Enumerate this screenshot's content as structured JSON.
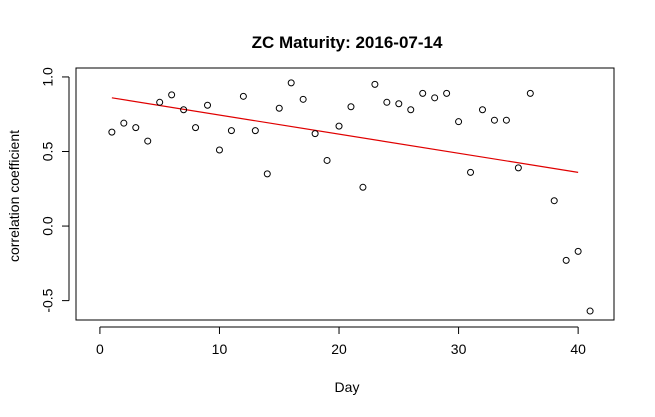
{
  "chart_data": {
    "type": "scatter",
    "title": "ZC Maturity: 2016-07-14",
    "xlabel": "Day",
    "ylabel": "correlation coefficient",
    "xlim": [
      -2,
      43
    ],
    "ylim": [
      -0.63,
      1.06
    ],
    "xticks": [
      0,
      10,
      20,
      30,
      40
    ],
    "yticks": [
      -0.5,
      0.0,
      0.5,
      1.0
    ],
    "xtick_labels": [
      "0",
      "10",
      "20",
      "30",
      "40"
    ],
    "ytick_labels": [
      "-0.5",
      "0.0",
      "0.5",
      "1.0"
    ],
    "grid": false,
    "series": [
      {
        "type": "scatter",
        "color": "#000000",
        "marker": "open-circle",
        "x": [
          1,
          2,
          3,
          4,
          5,
          6,
          7,
          8,
          9,
          10,
          11,
          12,
          13,
          14,
          15,
          16,
          17,
          18,
          19,
          20,
          21,
          22,
          23,
          24,
          25,
          26,
          27,
          28,
          29,
          30,
          31,
          32,
          33,
          34,
          35,
          36,
          38,
          39,
          40,
          41
        ],
        "y": [
          0.63,
          0.69,
          0.66,
          0.57,
          0.83,
          0.88,
          0.78,
          0.66,
          0.81,
          0.51,
          0.64,
          0.87,
          0.64,
          0.35,
          0.79,
          0.96,
          0.85,
          0.62,
          0.44,
          0.67,
          0.8,
          0.26,
          0.95,
          0.83,
          0.82,
          0.78,
          0.89,
          0.86,
          0.89,
          0.7,
          0.36,
          0.78,
          0.71,
          0.71,
          0.39,
          0.89,
          0.17,
          -0.23,
          -0.17,
          -0.57
        ]
      },
      {
        "type": "line",
        "color": "#e00000",
        "x": [
          1,
          40
        ],
        "y": [
          0.86,
          0.36
        ]
      }
    ]
  }
}
